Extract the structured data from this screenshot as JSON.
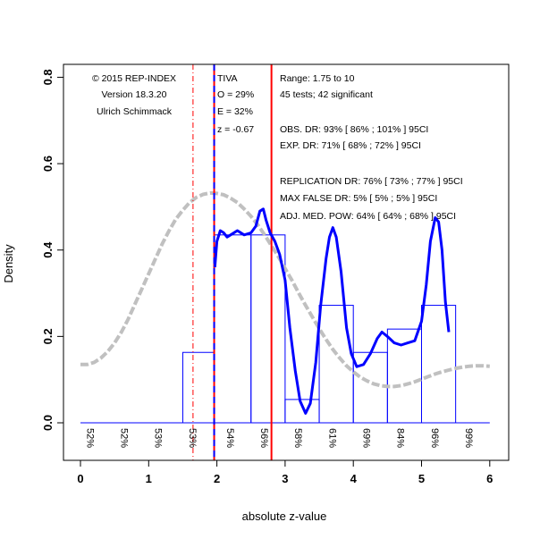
{
  "chart_data": {
    "type": "histogram-density",
    "xlabel": "absolute z-value",
    "ylabel": "Density",
    "xlim": [
      0,
      6
    ],
    "ylim": [
      -0.1,
      0.82
    ],
    "x_ticks": [
      0,
      1,
      2,
      3,
      4,
      5,
      6
    ],
    "y_ticks": [
      0.0,
      0.2,
      0.4,
      0.6,
      0.8
    ],
    "x_tick_labels": [
      "0",
      "1",
      "2",
      "3",
      "4",
      "5",
      "6"
    ],
    "y_tick_labels": [
      "0.0",
      "0.2",
      "0.4",
      "0.6",
      "0.8"
    ],
    "histogram": {
      "bins": [
        {
          "x0": 1.5,
          "x1": 1.96,
          "density": 0.163
        },
        {
          "x0": 1.96,
          "x1": 2.5,
          "density": 0.435
        },
        {
          "x0": 2.5,
          "x1": 3.0,
          "density": 0.435
        },
        {
          "x0": 3.0,
          "x1": 3.5,
          "density": 0.054
        },
        {
          "x0": 3.5,
          "x1": 4.0,
          "density": 0.272
        },
        {
          "x0": 4.0,
          "x1": 4.5,
          "density": 0.163
        },
        {
          "x0": 4.5,
          "x1": 5.0,
          "density": 0.217
        },
        {
          "x0": 5.0,
          "x1": 5.5,
          "density": 0.272
        }
      ],
      "color": "#0000ff"
    },
    "observed_density": {
      "color": "#0000ff",
      "points": [
        [
          1.97,
          0.36
        ],
        [
          2.0,
          0.42
        ],
        [
          2.05,
          0.445
        ],
        [
          2.1,
          0.44
        ],
        [
          2.15,
          0.43
        ],
        [
          2.2,
          0.435
        ],
        [
          2.3,
          0.445
        ],
        [
          2.4,
          0.435
        ],
        [
          2.5,
          0.44
        ],
        [
          2.57,
          0.455
        ],
        [
          2.63,
          0.49
        ],
        [
          2.68,
          0.495
        ],
        [
          2.72,
          0.47
        ],
        [
          2.78,
          0.44
        ],
        [
          2.85,
          0.42
        ],
        [
          2.92,
          0.39
        ],
        [
          3.0,
          0.33
        ],
        [
          3.07,
          0.22
        ],
        [
          3.15,
          0.12
        ],
        [
          3.22,
          0.05
        ],
        [
          3.3,
          0.022
        ],
        [
          3.37,
          0.045
        ],
        [
          3.45,
          0.14
        ],
        [
          3.52,
          0.27
        ],
        [
          3.6,
          0.38
        ],
        [
          3.65,
          0.43
        ],
        [
          3.7,
          0.452
        ],
        [
          3.75,
          0.43
        ],
        [
          3.82,
          0.35
        ],
        [
          3.9,
          0.22
        ],
        [
          3.97,
          0.16
        ],
        [
          4.05,
          0.13
        ],
        [
          4.15,
          0.135
        ],
        [
          4.25,
          0.16
        ],
        [
          4.35,
          0.195
        ],
        [
          4.42,
          0.21
        ],
        [
          4.5,
          0.2
        ],
        [
          4.6,
          0.185
        ],
        [
          4.7,
          0.18
        ],
        [
          4.8,
          0.185
        ],
        [
          4.9,
          0.19
        ],
        [
          5.0,
          0.235
        ],
        [
          5.07,
          0.32
        ],
        [
          5.13,
          0.42
        ],
        [
          5.2,
          0.475
        ],
        [
          5.25,
          0.465
        ],
        [
          5.3,
          0.4
        ],
        [
          5.35,
          0.28
        ],
        [
          5.4,
          0.21
        ]
      ]
    },
    "expected_density": {
      "color": "#c0c0c0",
      "points": [
        [
          0.0,
          0.135
        ],
        [
          0.1,
          0.135
        ],
        [
          0.2,
          0.14
        ],
        [
          0.3,
          0.15
        ],
        [
          0.4,
          0.165
        ],
        [
          0.5,
          0.185
        ],
        [
          0.6,
          0.21
        ],
        [
          0.7,
          0.24
        ],
        [
          0.8,
          0.275
        ],
        [
          0.9,
          0.31
        ],
        [
          1.0,
          0.345
        ],
        [
          1.1,
          0.38
        ],
        [
          1.2,
          0.415
        ],
        [
          1.3,
          0.445
        ],
        [
          1.4,
          0.472
        ],
        [
          1.5,
          0.492
        ],
        [
          1.6,
          0.51
        ],
        [
          1.7,
          0.522
        ],
        [
          1.8,
          0.529
        ],
        [
          1.9,
          0.532
        ],
        [
          2.0,
          0.531
        ],
        [
          2.1,
          0.528
        ],
        [
          2.2,
          0.52
        ],
        [
          2.3,
          0.51
        ],
        [
          2.4,
          0.495
        ],
        [
          2.5,
          0.478
        ],
        [
          2.6,
          0.458
        ],
        [
          2.7,
          0.435
        ],
        [
          2.8,
          0.41
        ],
        [
          2.9,
          0.385
        ],
        [
          3.0,
          0.357
        ],
        [
          3.1,
          0.33
        ],
        [
          3.2,
          0.3
        ],
        [
          3.3,
          0.272
        ],
        [
          3.4,
          0.245
        ],
        [
          3.5,
          0.218
        ],
        [
          3.6,
          0.193
        ],
        [
          3.7,
          0.17
        ],
        [
          3.8,
          0.15
        ],
        [
          3.9,
          0.132
        ],
        [
          4.0,
          0.118
        ],
        [
          4.1,
          0.106
        ],
        [
          4.2,
          0.097
        ],
        [
          4.3,
          0.09
        ],
        [
          4.4,
          0.086
        ],
        [
          4.5,
          0.084
        ],
        [
          4.6,
          0.084
        ],
        [
          4.7,
          0.086
        ],
        [
          4.8,
          0.09
        ],
        [
          4.9,
          0.095
        ],
        [
          5.0,
          0.101
        ],
        [
          5.1,
          0.107
        ],
        [
          5.2,
          0.113
        ],
        [
          5.3,
          0.118
        ],
        [
          5.4,
          0.122
        ],
        [
          5.5,
          0.126
        ],
        [
          5.6,
          0.129
        ],
        [
          5.7,
          0.131
        ],
        [
          5.8,
          0.132
        ],
        [
          5.9,
          0.132
        ],
        [
          6.0,
          0.131
        ]
      ]
    },
    "vertical_lines": [
      {
        "x": 1.65,
        "color": "#ff0000",
        "style": "dash-dot",
        "width": 1
      },
      {
        "x": 1.96,
        "color": "#ff0000",
        "style": "solid",
        "width": 2
      },
      {
        "x": 1.96,
        "color": "#0000ff",
        "style": "dashed",
        "width": 2
      },
      {
        "x": 2.8,
        "color": "#ff0000",
        "style": "solid",
        "width": 2
      }
    ],
    "baseline": {
      "y": 0,
      "x0": 0,
      "x1": 6,
      "color": "#0000ff"
    },
    "power_labels": [
      {
        "x": 0.15,
        "text": "52%"
      },
      {
        "x": 0.65,
        "text": "52%"
      },
      {
        "x": 1.15,
        "text": "53%"
      },
      {
        "x": 1.65,
        "text": "53%"
      },
      {
        "x": 2.2,
        "text": "54%"
      },
      {
        "x": 2.7,
        "text": "56%"
      },
      {
        "x": 3.2,
        "text": "58%"
      },
      {
        "x": 3.7,
        "text": "61%"
      },
      {
        "x": 4.2,
        "text": "69%"
      },
      {
        "x": 4.7,
        "text": "84%"
      },
      {
        "x": 5.2,
        "text": "96%"
      },
      {
        "x": 5.7,
        "text": "99%"
      }
    ],
    "annotations": {
      "credits": [
        "© 2015 REP-INDEX",
        "Version 18.3.20",
        "Ulrich Schimmack"
      ],
      "tiva": [
        "TIVA",
        "O = 29%",
        "E = 32%",
        "z = -0.67"
      ],
      "stats": [
        "Range: 1.75 to 10",
        "45 tests; 42 significant",
        "",
        "OBS. DR: 93% [ 86% ; 101% ] 95CI",
        "EXP. DR: 71% [ 68% ; 72% ] 95CI",
        "",
        "REPLICATION DR: 76% [ 73% ; 77% ] 95CI",
        "MAX FALSE DR: 5% [ 5% ; 5% ] 95CI",
        "ADJ. MED. POW: 64% [ 64% ; 68% ] 95CI"
      ]
    }
  }
}
